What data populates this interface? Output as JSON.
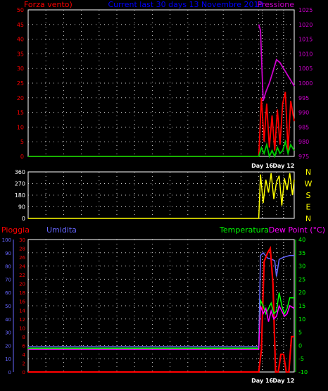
{
  "colors": {
    "background": "#000000",
    "frame": "#ffffff",
    "grid": "#ffffff",
    "wind": "#ff0000",
    "gust": "#00cc00",
    "pressure": "#cc00cc",
    "direction": "#ffff00",
    "rain": "#ff0000",
    "humidity": "#6666ff",
    "temperature": "#00ff00",
    "dewpoint": "#ff00ff",
    "title": "#0000ff",
    "day_marker": "#ffffff"
  },
  "chart_data": [
    {
      "type": "line",
      "title": "Current last 30 days 13 Novembre 2019",
      "left_axis_label": "Forza vento)",
      "right_axis_label": "Pressione",
      "left_ticks": [
        "0",
        "5",
        "10",
        "15",
        "20",
        "25",
        "30",
        "35",
        "40",
        "45",
        "50"
      ],
      "right_ticks": [
        "975",
        "980",
        "985",
        "990",
        "995",
        "1000",
        "1005",
        "1010",
        "1015",
        "1020",
        "1025"
      ],
      "ylim_left": [
        0,
        50
      ],
      "ylim_right": [
        975,
        1025
      ],
      "xlim": [
        0,
        30
      ],
      "day_labels": [
        {
          "label": "Day 16",
          "x": 26.4
        },
        {
          "label": "Day 12",
          "x": 28.8
        }
      ],
      "series": [
        {
          "key": "wind",
          "axis": "left",
          "x": [
            0,
            26.0,
            26.3,
            26.6,
            26.9,
            27.2,
            27.5,
            27.8,
            28.1,
            28.4,
            28.7,
            29.0,
            29.3,
            29.6,
            30.0
          ],
          "y": [
            0,
            0,
            20,
            5,
            18,
            3,
            14,
            2,
            16,
            4,
            18,
            22,
            2,
            19,
            12
          ]
        },
        {
          "key": "gust",
          "axis": "left",
          "x": [
            0,
            26.0,
            26.3,
            26.6,
            26.9,
            27.2,
            27.5,
            27.8,
            28.1,
            28.4,
            28.7,
            29.0,
            29.3,
            29.6,
            30.0
          ],
          "y": [
            0,
            0,
            3,
            1,
            4,
            0,
            2,
            0,
            3,
            1,
            2,
            5,
            1,
            4,
            2
          ]
        },
        {
          "key": "pressure",
          "axis": "right",
          "x": [
            26.0,
            26.2,
            26.5,
            26.8,
            27.2,
            27.6,
            28.0,
            28.4,
            28.8,
            29.2,
            29.6,
            30.0
          ],
          "y": [
            1020,
            1018,
            994,
            997,
            1000,
            1004,
            1008,
            1007,
            1005,
            1003,
            1001,
            999
          ]
        }
      ]
    },
    {
      "type": "line",
      "right_labels": [
        "N",
        "W",
        "S",
        "E",
        "N"
      ],
      "left_ticks": [
        "0",
        "90",
        "180",
        "270",
        "360"
      ],
      "ylim": [
        0,
        360
      ],
      "xlim": [
        0,
        30
      ],
      "day_labels": [
        {
          "label": "Day 16",
          "x": 26.4
        },
        {
          "label": "Day 12",
          "x": 28.8
        }
      ],
      "series": [
        {
          "key": "direction",
          "x": [
            0,
            26.0,
            26.2,
            26.5,
            26.8,
            27.1,
            27.4,
            27.7,
            28.0,
            28.3,
            28.6,
            28.9,
            29.2,
            29.5,
            29.8,
            30.0
          ],
          "y": [
            0,
            0,
            340,
            120,
            300,
            200,
            350,
            150,
            280,
            330,
            100,
            310,
            220,
            350,
            180,
            300
          ]
        }
      ]
    },
    {
      "type": "line",
      "left_labels": [
        "Pioggia",
        "Umidita"
      ],
      "right_labels": [
        "Temperatura",
        "Dew Point (°C)"
      ],
      "hum_ticks": [
        "0",
        "10",
        "20",
        "30",
        "40",
        "50",
        "60",
        "70",
        "80",
        "90",
        "100"
      ],
      "rain_ticks": [
        "0",
        "2",
        "4",
        "6",
        "8",
        "10",
        "12",
        "14",
        "16",
        "18",
        "20",
        "22",
        "24",
        "26",
        "28",
        "30"
      ],
      "temp_ticks": [
        "-10",
        "-5",
        "0",
        "5",
        "10",
        "15",
        "20",
        "25",
        "30",
        "35",
        "40"
      ],
      "ylim_humidity": [
        0,
        100
      ],
      "ylim_rain": [
        0,
        30
      ],
      "ylim_temp": [
        -10,
        40
      ],
      "xlim": [
        0,
        30
      ],
      "day_labels": [
        {
          "label": "Day 16",
          "x": 26.4
        },
        {
          "label": "Day 12",
          "x": 28.8
        }
      ],
      "series": [
        {
          "key": "humidity",
          "axis": "humidity",
          "x": [
            0,
            26.0,
            26.2,
            26.5,
            27.0,
            27.5,
            27.8,
            28.0,
            28.3,
            28.6,
            29.0,
            29.5,
            30.0
          ],
          "y": [
            19,
            19,
            88,
            90,
            86,
            85,
            84,
            72,
            85,
            86,
            87,
            88,
            88
          ]
        },
        {
          "key": "rain",
          "axis": "rain",
          "x": [
            0,
            26.0,
            26.3,
            26.6,
            27.0,
            27.3,
            27.6,
            27.9,
            28.2,
            28.5,
            28.8,
            29.1,
            29.4,
            29.7,
            30.0
          ],
          "y": [
            0,
            0,
            5,
            25,
            27,
            28,
            20,
            0,
            0,
            4,
            4,
            0,
            0,
            8,
            8
          ]
        },
        {
          "key": "temperature",
          "axis": "temp",
          "x": [
            0,
            26.0,
            26.2,
            26.5,
            26.8,
            27.1,
            27.4,
            27.7,
            28.0,
            28.3,
            28.6,
            28.9,
            29.2,
            29.5,
            30.0
          ],
          "y": [
            -1,
            -1,
            17,
            15,
            12,
            14,
            16,
            12,
            13,
            20,
            15,
            12,
            14,
            18,
            18
          ]
        },
        {
          "key": "dewpoint",
          "axis": "temp",
          "x": [
            0,
            26.0,
            26.2,
            26.5,
            26.8,
            27.1,
            27.4,
            27.7,
            28.0,
            28.3,
            28.6,
            28.9,
            29.2,
            29.5,
            30.0
          ],
          "y": [
            -1.5,
            -1.5,
            15,
            12,
            14,
            9,
            13,
            10,
            11,
            15,
            13,
            11,
            12,
            15,
            14
          ]
        }
      ]
    }
  ]
}
